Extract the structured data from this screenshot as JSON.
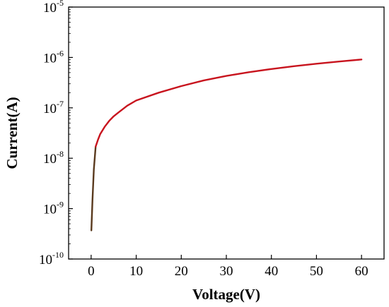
{
  "chart_data": {
    "type": "line",
    "title": "",
    "xlabel": "Voltage(V)",
    "ylabel": "Current(A)",
    "y_scale": "log",
    "xlim": [
      -5,
      65
    ],
    "ylim": [
      1e-10,
      1e-05
    ],
    "grid": false,
    "x_ticks": [
      {
        "value": 0,
        "label": "0"
      },
      {
        "value": 10,
        "label": "10"
      },
      {
        "value": 20,
        "label": "20"
      },
      {
        "value": 30,
        "label": "30"
      },
      {
        "value": 40,
        "label": "40"
      },
      {
        "value": 50,
        "label": "50"
      },
      {
        "value": 60,
        "label": "60"
      }
    ],
    "y_ticks": [
      {
        "value": 1e-10,
        "base": "10",
        "exp": "-10"
      },
      {
        "value": 1e-09,
        "base": "10",
        "exp": "-9"
      },
      {
        "value": 1e-08,
        "base": "10",
        "exp": "-8"
      },
      {
        "value": 1e-07,
        "base": "10",
        "exp": "-7"
      },
      {
        "value": 1e-06,
        "base": "10",
        "exp": "-6"
      },
      {
        "value": 1e-05,
        "base": "10",
        "exp": "-5"
      }
    ],
    "series": [
      {
        "color": "#c8141e",
        "start_color": "#5a3a1e",
        "points": [
          [
            0.05,
            3.7e-10
          ],
          [
            0.3,
            1.5e-09
          ],
          [
            0.6,
            6e-09
          ],
          [
            1.0,
            1.7e-08
          ],
          [
            1.5,
            2.3e-08
          ],
          [
            2.0,
            3e-08
          ],
          [
            3.0,
            4.2e-08
          ],
          [
            4.0,
            5.5e-08
          ],
          [
            5.0,
            6.8e-08
          ],
          [
            6.0,
            8e-08
          ],
          [
            8.0,
            1.1e-07
          ],
          [
            10.0,
            1.4e-07
          ],
          [
            15.0,
            2e-07
          ],
          [
            20.0,
            2.7e-07
          ],
          [
            25.0,
            3.5e-07
          ],
          [
            30.0,
            4.3e-07
          ],
          [
            35.0,
            5.1e-07
          ],
          [
            40.0,
            5.9e-07
          ],
          [
            45.0,
            6.7e-07
          ],
          [
            50.0,
            7.5e-07
          ],
          [
            55.0,
            8.3e-07
          ],
          [
            60.0,
            9.1e-07
          ]
        ]
      }
    ]
  },
  "colors": {
    "axis": "#000000",
    "curve": "#c8141e"
  }
}
